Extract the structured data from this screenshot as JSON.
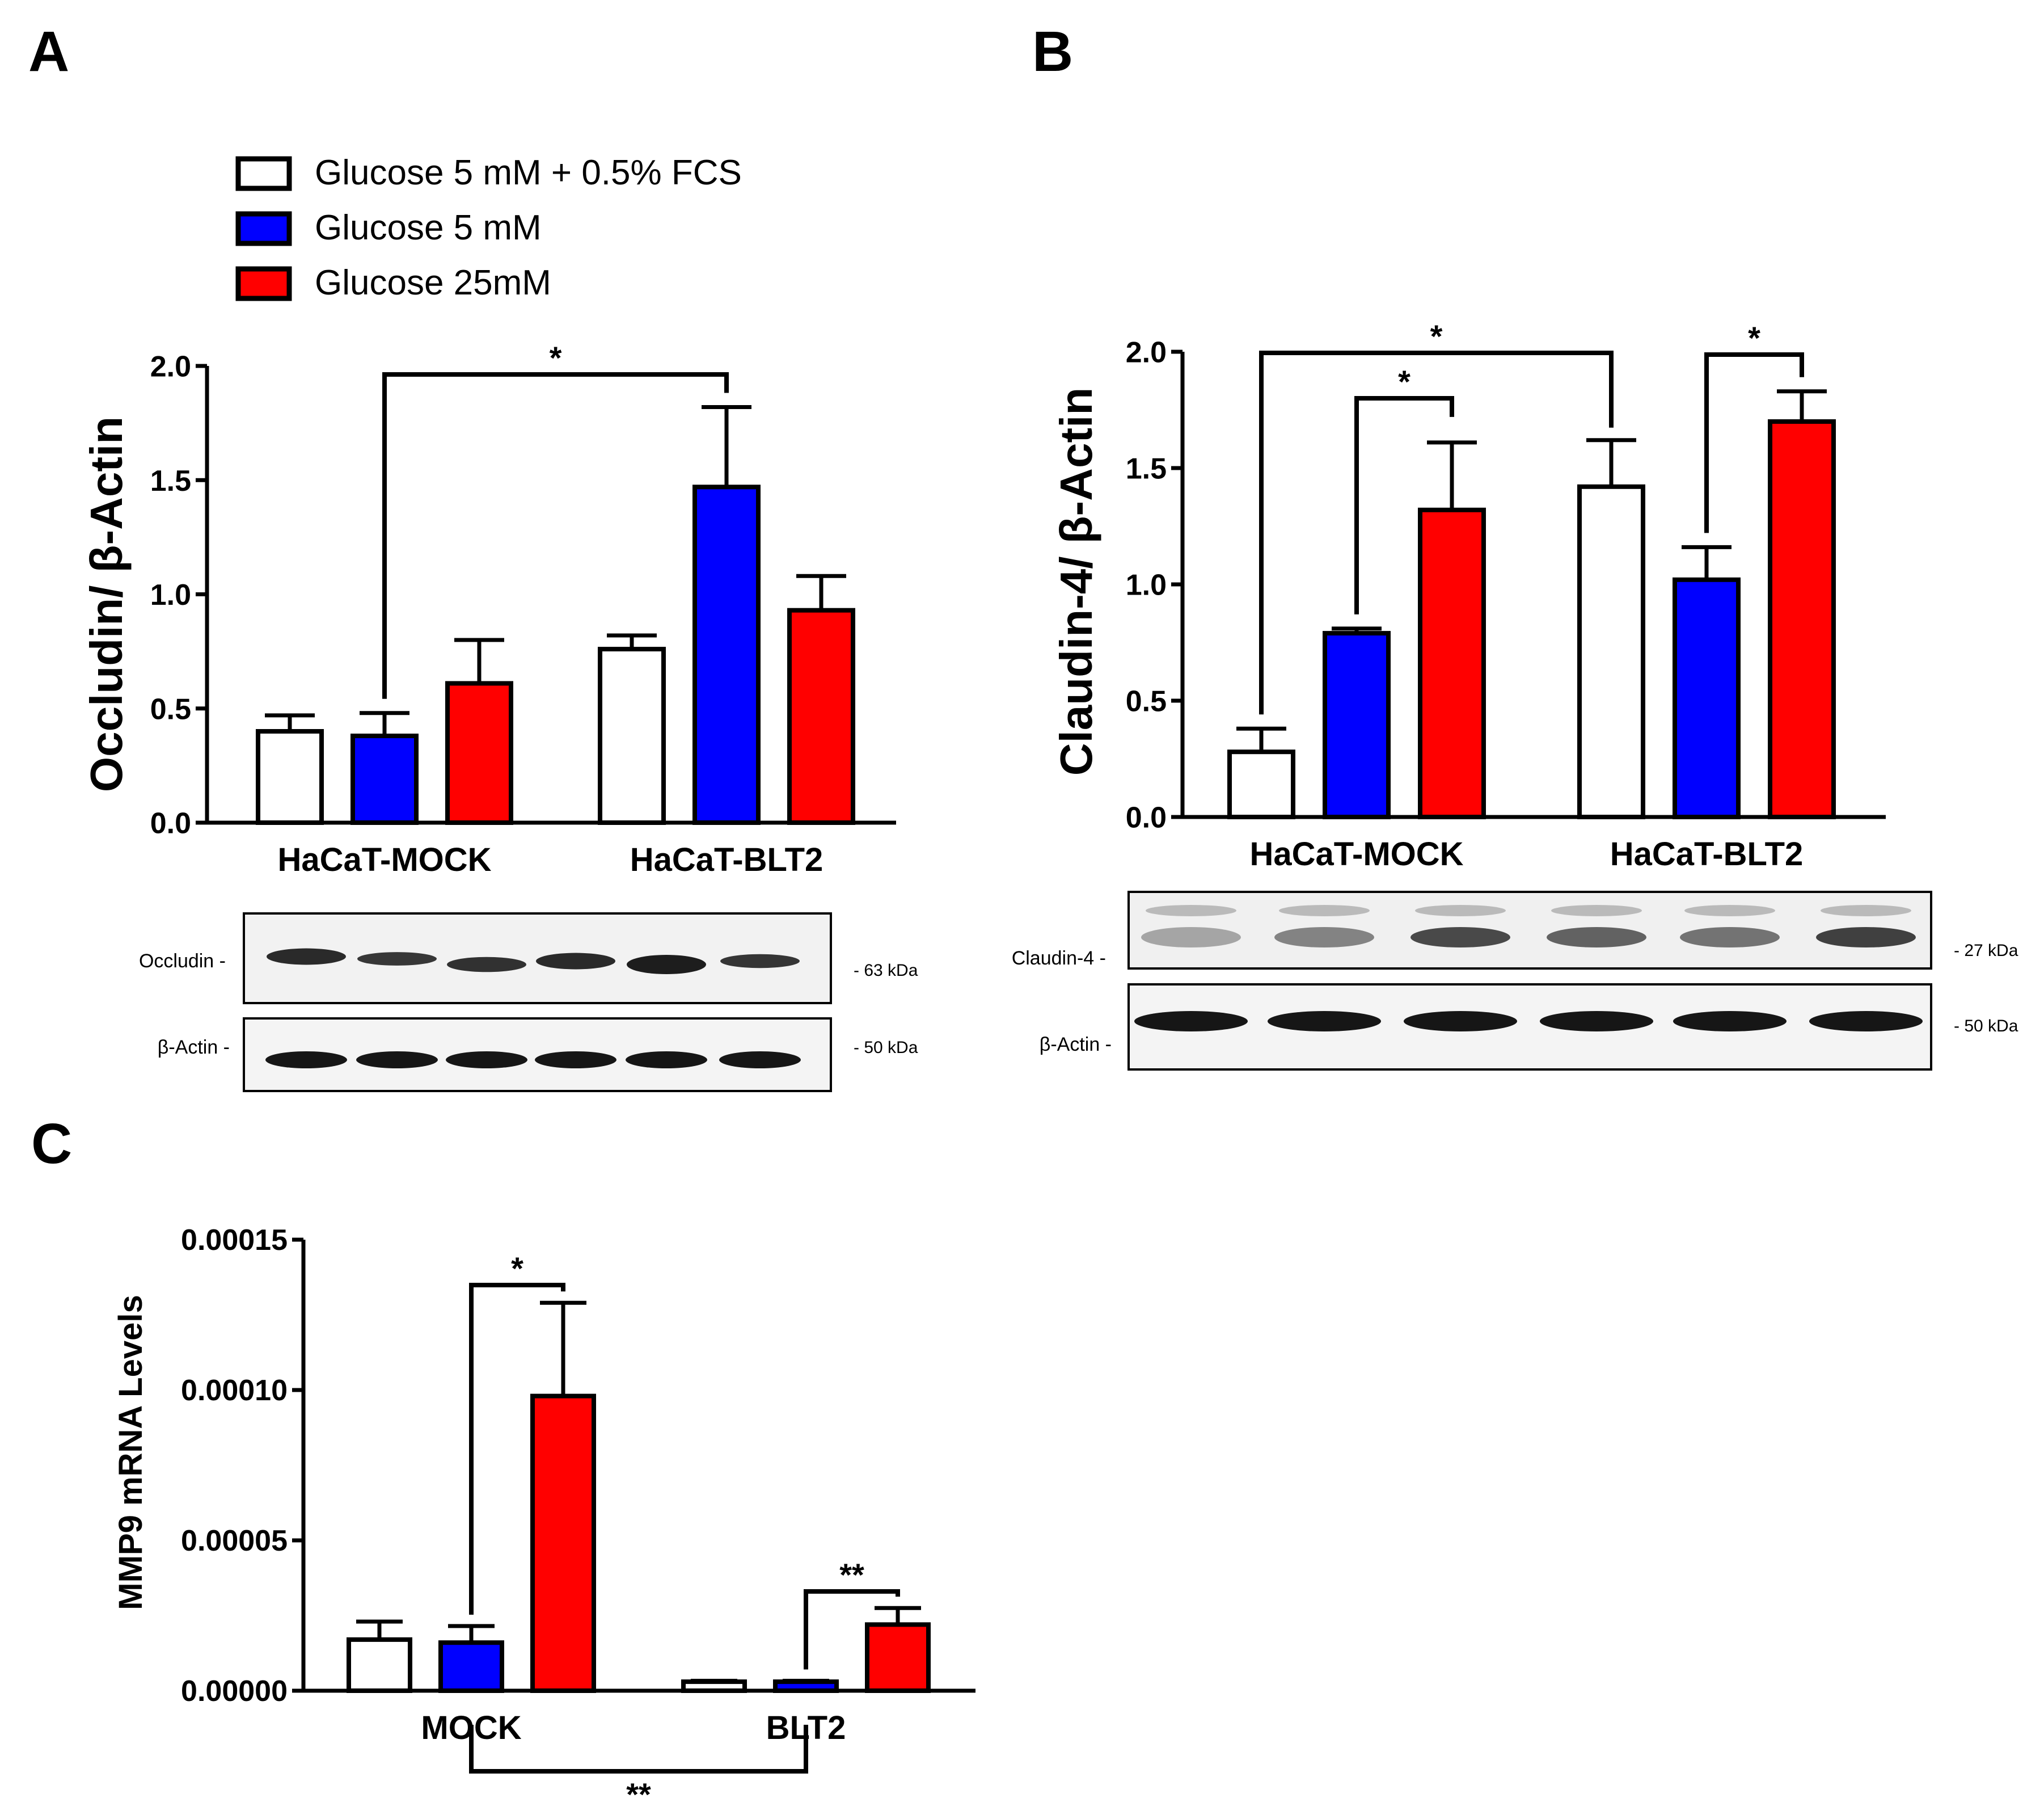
{
  "panels": {
    "a": "A",
    "b": "B",
    "c": "C"
  },
  "legend": [
    {
      "label": "Glucose 5 mM + 0.5% FCS",
      "color": "#ffffff"
    },
    {
      "label": "Glucose 5 mM",
      "color": "#0000ff"
    },
    {
      "label": "Glucose 25mM",
      "color": "#ff0000"
    }
  ],
  "colors": {
    "white": "#ffffff",
    "blue": "#0000ff",
    "red": "#ff0000",
    "axis": "#000000"
  },
  "chart_data": [
    {
      "type": "bar",
      "id": "A",
      "ylabel": "Occludin/ β-Actin",
      "ylim": [
        0,
        2.0
      ],
      "yticks": [
        "0.0",
        "0.5",
        "1.0",
        "1.5",
        "2.0"
      ],
      "categories": [
        "HaCaT-MOCK",
        "HaCaT-BLT2"
      ],
      "series": [
        {
          "name": "Glucose 5 mM + 0.5% FCS",
          "values": [
            0.4,
            0.76
          ],
          "errors": [
            0.07,
            0.06
          ]
        },
        {
          "name": "Glucose 5 mM",
          "values": [
            0.38,
            1.47
          ],
          "errors": [
            0.1,
            0.35
          ]
        },
        {
          "name": "Glucose 25mM",
          "values": [
            0.61,
            0.93
          ],
          "errors": [
            0.19,
            0.15
          ]
        }
      ],
      "significance": [
        {
          "from": "HaCaT-MOCK / Glucose 5 mM",
          "to": "HaCaT-BLT2 / Glucose 5 mM",
          "label": "*"
        }
      ],
      "blot": {
        "rows": [
          {
            "label": "Occludin -",
            "kda": "- 63 kDa"
          },
          {
            "label": "β-Actin -",
            "kda": "- 50 kDa"
          }
        ]
      }
    },
    {
      "type": "bar",
      "id": "B",
      "ylabel": "Claudin-4/ β-Actin",
      "ylim": [
        0,
        2.0
      ],
      "yticks": [
        "0.0",
        "0.5",
        "1.0",
        "1.5",
        "2.0"
      ],
      "categories": [
        "HaCaT-MOCK",
        "HaCaT-BLT2"
      ],
      "series": [
        {
          "name": "Glucose 5 mM + 0.5% FCS",
          "values": [
            0.28,
            1.42
          ],
          "errors": [
            0.1,
            0.2
          ]
        },
        {
          "name": "Glucose 5 mM",
          "values": [
            0.79,
            1.02
          ],
          "errors": [
            0.02,
            0.14
          ]
        },
        {
          "name": "Glucose 25mM",
          "values": [
            1.32,
            1.7
          ],
          "errors": [
            0.29,
            0.13
          ]
        }
      ],
      "significance": [
        {
          "from": "HaCaT-MOCK / Glucose 5 mM + 0.5% FCS",
          "to": "HaCaT-BLT2 / Glucose 5 mM + 0.5% FCS",
          "label": "*"
        },
        {
          "from": "HaCaT-MOCK / Glucose 5 mM",
          "to": "HaCaT-MOCK / Glucose 25mM",
          "label": "*"
        },
        {
          "from": "HaCaT-BLT2 / Glucose 5 mM",
          "to": "HaCaT-BLT2 / Glucose 25mM",
          "label": "*"
        }
      ],
      "blot": {
        "rows": [
          {
            "label": "Claudin-4 -",
            "kda": "- 27 kDa"
          },
          {
            "label": "β-Actin -",
            "kda": "- 50 kDa"
          }
        ]
      }
    },
    {
      "type": "bar",
      "id": "C",
      "ylabel": "MMP9 mRNA Levels",
      "ylim": [
        0,
        0.00015
      ],
      "yticks": [
        "0.00000",
        "0.00005",
        "0.00010",
        "0.00015"
      ],
      "categories": [
        "MOCK",
        "BLT2"
      ],
      "series": [
        {
          "name": "Glucose 5 mM + 0.5% FCS",
          "values": [
            1.7e-05,
            3e-06
          ],
          "errors": [
            6e-06,
            3e-07
          ]
        },
        {
          "name": "Glucose 5 mM",
          "values": [
            1.6e-05,
            3e-06
          ],
          "errors": [
            5.5e-06,
            3e-07
          ]
        },
        {
          "name": "Glucose 25mM",
          "values": [
            9.8e-05,
            2.2e-05
          ],
          "errors": [
            3.1e-05,
            5.5e-06
          ]
        }
      ],
      "significance": [
        {
          "from": "MOCK / Glucose 5 mM",
          "to": "MOCK / Glucose 25mM",
          "label": "*"
        },
        {
          "from": "BLT2 / Glucose 5 mM",
          "to": "BLT2 / Glucose 25mM",
          "label": "**"
        },
        {
          "from": "MOCK / Glucose 5 mM",
          "to": "BLT2 / Glucose 5 mM",
          "label": "**"
        }
      ]
    }
  ]
}
